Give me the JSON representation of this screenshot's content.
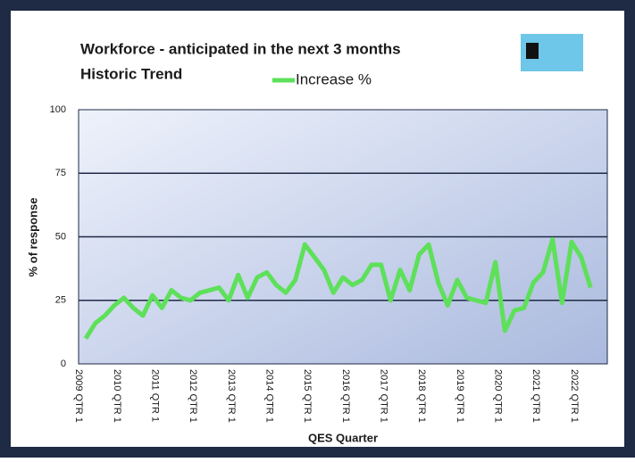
{
  "chart_data": {
    "type": "line",
    "title": "Workforce - anticipated in the next 3 months",
    "subtitle": "Historic Trend",
    "y_label": "% of response",
    "x_label": "QES Quarter",
    "categories": [
      "2009 QTR 1",
      null,
      null,
      null,
      "2010 QTR 1",
      null,
      null,
      null,
      "2011 QTR 1",
      null,
      null,
      null,
      "2012 QTR 1",
      null,
      null,
      null,
      "2013 QTR 1",
      null,
      null,
      null,
      "2014 QTR 1",
      null,
      null,
      null,
      "2015 QTR 1",
      null,
      null,
      null,
      "2016 QTR 1",
      null,
      null,
      null,
      "2017 QTR 1",
      null,
      null,
      null,
      "2018 QTR 1",
      null,
      null,
      null,
      "2019 QTR 1",
      null,
      null,
      null,
      "2020 QTR 1",
      null,
      null,
      null,
      "2021 QTR 1",
      null,
      null,
      null,
      "2022 QTR 1",
      null
    ],
    "series": [
      {
        "name": "Increase %",
        "color": "#5ee05a",
        "values": [
          10,
          16,
          19,
          23,
          26,
          22,
          19,
          27,
          22,
          29,
          26,
          25,
          28,
          29,
          30,
          25,
          35,
          26,
          34,
          36,
          31,
          28,
          33,
          47,
          42,
          37,
          28,
          34,
          31,
          33,
          39,
          39,
          25,
          37,
          29,
          43,
          47,
          32,
          23,
          33,
          26,
          25,
          24,
          40,
          13,
          21,
          22,
          32,
          36,
          49,
          24,
          48,
          42,
          30
        ]
      }
    ],
    "ylim": [
      0,
      100
    ],
    "yticks": [
      0,
      25,
      50,
      75,
      100
    ],
    "grid": true,
    "legend": "top"
  }
}
